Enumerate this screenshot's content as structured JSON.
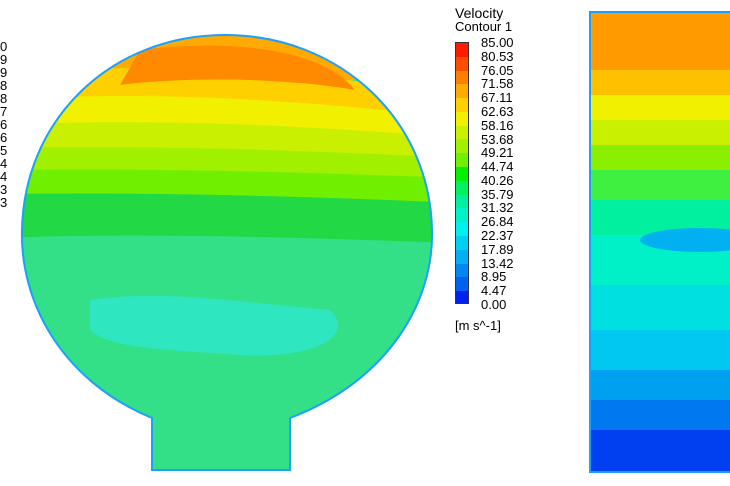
{
  "legend": {
    "title": "Velocity",
    "subtitle": "Contour 1",
    "units": "[m s^-1]",
    "levels": [
      "85.00",
      "80.53",
      "76.05",
      "71.58",
      "67.11",
      "62.63",
      "58.16",
      "53.68",
      "49.21",
      "44.74",
      "40.26",
      "35.79",
      "31.32",
      "26.84",
      "22.37",
      "17.89",
      "13.42",
      "8.95",
      "4.47",
      "0.00"
    ],
    "colors": [
      "#ff1a00",
      "#ff4d00",
      "#ff7f00",
      "#ffaa00",
      "#ffd000",
      "#f0f000",
      "#c8f000",
      "#a0f000",
      "#70f000",
      "#00f000",
      "#00f060",
      "#00f0a0",
      "#00f0c8",
      "#00f0f0",
      "#00d0f0",
      "#00b0f0",
      "#0088f0",
      "#0060f0",
      "#0020f0"
    ]
  },
  "cut_legend": {
    "digits": [
      "0",
      "9",
      "9",
      "8",
      "8",
      "7",
      "6",
      "6",
      "5",
      "4",
      "4",
      "3",
      "3"
    ]
  }
}
